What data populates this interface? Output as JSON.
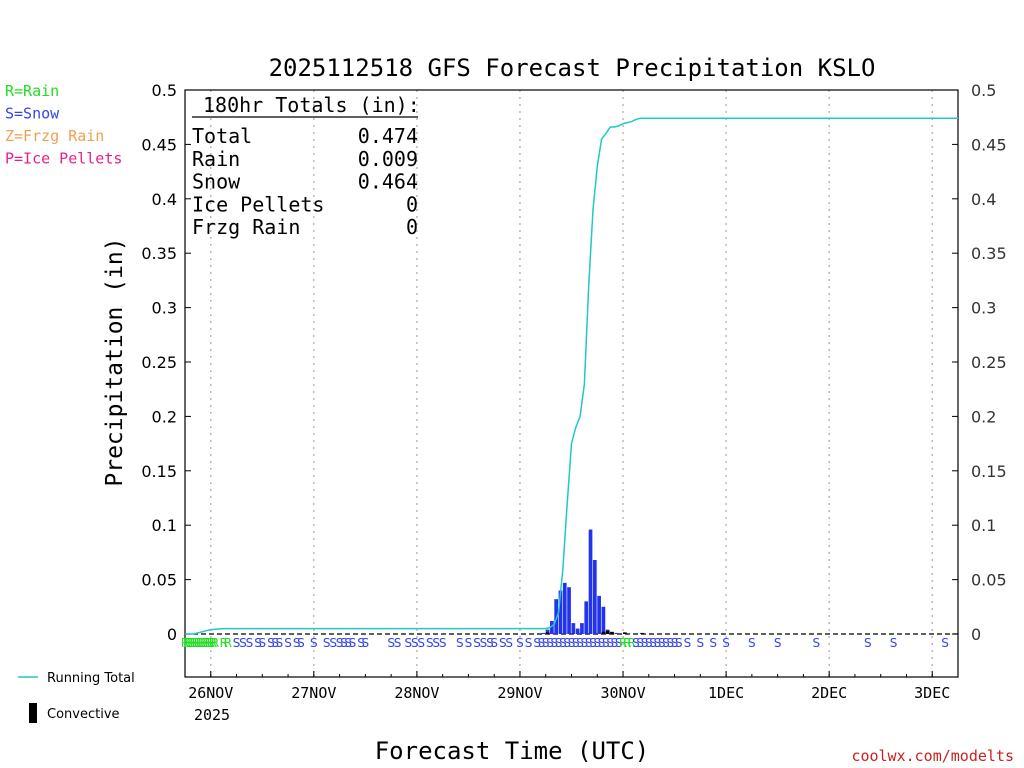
{
  "chart_data": {
    "type": "bar",
    "title": "2025112518 GFS Forecast Precipitation KSLO",
    "xlabel": "Forecast Time (UTC)",
    "ylabel": "Precipitation (in)",
    "ylim": [
      0,
      0.5
    ],
    "y_ticks": [
      "0",
      "0.05",
      "0.1",
      "0.15",
      "0.2",
      "0.25",
      "0.3",
      "0.35",
      "0.4",
      "0.45",
      "0.5"
    ],
    "x_unit": "hours from 25NOV 18Z",
    "xlim": [
      0,
      180
    ],
    "x_tick_labels": [
      {
        "hour": 6,
        "label": "26NOV"
      },
      {
        "hour": 30,
        "label": "27NOV"
      },
      {
        "hour": 54,
        "label": "28NOV"
      },
      {
        "hour": 78,
        "label": "29NOV"
      },
      {
        "hour": 102,
        "label": "30NOV"
      },
      {
        "hour": 126,
        "label": "1DEC"
      },
      {
        "hour": 150,
        "label": "2DEC"
      },
      {
        "hour": 174,
        "label": "3DEC"
      }
    ],
    "year_label": "2025",
    "legend_types": [
      {
        "text": "R=Rain",
        "color": "#22dd22"
      },
      {
        "text": "S=Snow",
        "color": "#3344ee"
      },
      {
        "text": "Z=Frzg Rain",
        "color": "#f0a050"
      },
      {
        "text": "P=Ice Pellets",
        "color": "#e8208a"
      }
    ],
    "legend_series": [
      {
        "text": "Running Total",
        "color": "#20c8c8"
      },
      {
        "text": "Convective",
        "color": "#000000"
      }
    ],
    "totals_header": "180hr Totals (in):",
    "totals": [
      {
        "label": "Total",
        "value": "0.474"
      },
      {
        "label": "Rain",
        "value": "0.009"
      },
      {
        "label": "Snow",
        "value": "0.464"
      },
      {
        "label": "Ice Pellets",
        "value": "0"
      },
      {
        "label": "Frzg Rain",
        "value": "0"
      }
    ],
    "series": [
      {
        "name": "Running Total",
        "color": "#20c8c8",
        "x": [
          0,
          2,
          3,
          4,
          5,
          6,
          9,
          12,
          84,
          85,
          86,
          87,
          88,
          89,
          90,
          91,
          92,
          93,
          94,
          95,
          96,
          97,
          98,
          99,
          100,
          101,
          102,
          103,
          104,
          105,
          106,
          107,
          108,
          109,
          110,
          111,
          112,
          114,
          117,
          180
        ],
        "values": [
          0,
          0,
          0.001,
          0.002,
          0.003,
          0.004,
          0.005,
          0.005,
          0.005,
          0.006,
          0.009,
          0.02,
          0.06,
          0.12,
          0.175,
          0.19,
          0.2,
          0.23,
          0.32,
          0.39,
          0.43,
          0.455,
          0.46,
          0.466,
          0.466,
          0.467,
          0.469,
          0.47,
          0.471,
          0.473,
          0.474,
          0.474,
          0.474,
          0.474,
          0.474,
          0.474,
          0.474,
          0.474,
          0.474,
          0.474
        ]
      },
      {
        "name": "Precipitation",
        "color": "#2233ee",
        "x": [
          84,
          85,
          86,
          87,
          88,
          89,
          90,
          91,
          92,
          93,
          94,
          95,
          96,
          97,
          98,
          99,
          101,
          103
        ],
        "values": [
          0.001,
          0.004,
          0.012,
          0.032,
          0.04,
          0.047,
          0.043,
          0.01,
          0.005,
          0.01,
          0.03,
          0.096,
          0.068,
          0.035,
          0.025,
          0.004,
          0.001,
          0.001
        ]
      },
      {
        "name": "Convective",
        "color": "#000000",
        "x": [
          85,
          98,
          99,
          100,
          103,
          107
        ],
        "values": [
          0.0015,
          0.002,
          0.003,
          0.002,
          0.0015,
          0.001
        ]
      }
    ],
    "ptype_marks": [
      {
        "hour": 0,
        "type": "R"
      },
      {
        "hour": 0.5,
        "type": "R"
      },
      {
        "hour": 1,
        "type": "R"
      },
      {
        "hour": 1.5,
        "type": "R"
      },
      {
        "hour": 2,
        "type": "R"
      },
      {
        "hour": 2.5,
        "type": "R"
      },
      {
        "hour": 3,
        "type": "R"
      },
      {
        "hour": 3.5,
        "type": "R"
      },
      {
        "hour": 4,
        "type": "R"
      },
      {
        "hour": 4.5,
        "type": "R"
      },
      {
        "hour": 5,
        "type": "R"
      },
      {
        "hour": 5.5,
        "type": "R"
      },
      {
        "hour": 6,
        "type": "R"
      },
      {
        "hour": 6.5,
        "type": "R"
      },
      {
        "hour": 7,
        "type": "R"
      },
      {
        "hour": 9,
        "type": "R"
      },
      {
        "hour": 10,
        "type": "R"
      },
      {
        "hour": 12,
        "type": "S"
      },
      {
        "hour": 13.5,
        "type": "S"
      },
      {
        "hour": 15,
        "type": "S"
      },
      {
        "hour": 17,
        "type": "S"
      },
      {
        "hour": 18,
        "type": "S"
      },
      {
        "hour": 20,
        "type": "S"
      },
      {
        "hour": 21,
        "type": "S"
      },
      {
        "hour": 22,
        "type": "S"
      },
      {
        "hour": 24,
        "type": "S"
      },
      {
        "hour": 26,
        "type": "S"
      },
      {
        "hour": 27,
        "type": "S"
      },
      {
        "hour": 30,
        "type": "S"
      },
      {
        "hour": 33,
        "type": "S"
      },
      {
        "hour": 34.5,
        "type": "S"
      },
      {
        "hour": 36,
        "type": "S"
      },
      {
        "hour": 37,
        "type": "S"
      },
      {
        "hour": 38,
        "type": "S"
      },
      {
        "hour": 39,
        "type": "S"
      },
      {
        "hour": 41,
        "type": "S"
      },
      {
        "hour": 42,
        "type": "S"
      },
      {
        "hour": 48,
        "type": "S"
      },
      {
        "hour": 49.5,
        "type": "S"
      },
      {
        "hour": 52,
        "type": "S"
      },
      {
        "hour": 53.5,
        "type": "S"
      },
      {
        "hour": 55,
        "type": "S"
      },
      {
        "hour": 57,
        "type": "S"
      },
      {
        "hour": 58.5,
        "type": "S"
      },
      {
        "hour": 60,
        "type": "S"
      },
      {
        "hour": 64,
        "type": "S"
      },
      {
        "hour": 66,
        "type": "S"
      },
      {
        "hour": 68,
        "type": "S"
      },
      {
        "hour": 69.5,
        "type": "S"
      },
      {
        "hour": 71,
        "type": "S"
      },
      {
        "hour": 72,
        "type": "S"
      },
      {
        "hour": 74,
        "type": "S"
      },
      {
        "hour": 75.5,
        "type": "S"
      },
      {
        "hour": 78,
        "type": "S"
      },
      {
        "hour": 80,
        "type": "S"
      },
      {
        "hour": 82,
        "type": "S"
      },
      {
        "hour": 83,
        "type": "S"
      },
      {
        "hour": 84,
        "type": "S"
      },
      {
        "hour": 85,
        "type": "S"
      },
      {
        "hour": 86,
        "type": "S"
      },
      {
        "hour": 87,
        "type": "S"
      },
      {
        "hour": 88,
        "type": "S"
      },
      {
        "hour": 89,
        "type": "S"
      },
      {
        "hour": 90,
        "type": "S"
      },
      {
        "hour": 91,
        "type": "S"
      },
      {
        "hour": 92,
        "type": "S"
      },
      {
        "hour": 93,
        "type": "S"
      },
      {
        "hour": 94,
        "type": "S"
      },
      {
        "hour": 95,
        "type": "S"
      },
      {
        "hour": 96,
        "type": "S"
      },
      {
        "hour": 97,
        "type": "S"
      },
      {
        "hour": 98,
        "type": "S"
      },
      {
        "hour": 99,
        "type": "S"
      },
      {
        "hour": 100,
        "type": "S"
      },
      {
        "hour": 101,
        "type": "S"
      },
      {
        "hour": 102,
        "type": "R"
      },
      {
        "hour": 103,
        "type": "R"
      },
      {
        "hour": 104,
        "type": "R"
      },
      {
        "hour": 105,
        "type": "S"
      },
      {
        "hour": 106,
        "type": "S"
      },
      {
        "hour": 107,
        "type": "S"
      },
      {
        "hour": 108,
        "type": "S"
      },
      {
        "hour": 109,
        "type": "S"
      },
      {
        "hour": 110,
        "type": "S"
      },
      {
        "hour": 111,
        "type": "S"
      },
      {
        "hour": 112,
        "type": "S"
      },
      {
        "hour": 113,
        "type": "S"
      },
      {
        "hour": 114,
        "type": "S"
      },
      {
        "hour": 115,
        "type": "S"
      },
      {
        "hour": 117,
        "type": "S"
      },
      {
        "hour": 120,
        "type": "S"
      },
      {
        "hour": 123,
        "type": "S"
      },
      {
        "hour": 126,
        "type": "S"
      },
      {
        "hour": 132,
        "type": "S"
      },
      {
        "hour": 138,
        "type": "S"
      },
      {
        "hour": 147,
        "type": "S"
      },
      {
        "hour": 159,
        "type": "S"
      },
      {
        "hour": 165,
        "type": "S"
      },
      {
        "hour": 177,
        "type": "S"
      }
    ],
    "watermark": "coolwx.com/modelts"
  }
}
